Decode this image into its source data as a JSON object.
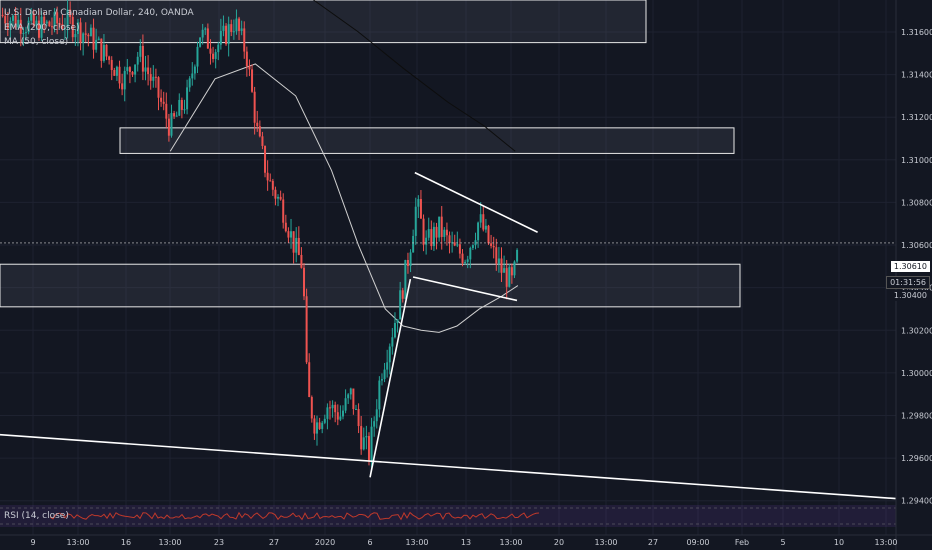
{
  "header": {
    "symbol": "U.S. Dollar / Canadian Dollar, 240, OANDA",
    "ema_label": "EMA (200, close)",
    "ma_label": "MA (50, close)",
    "rsi_label": "RSI (14, close)"
  },
  "price_axis": {
    "last_price": "1.30610",
    "countdown": "01:31:56",
    "extra_tick": "1.30400"
  },
  "chart_data": {
    "type": "candlestick",
    "title": "U.S. Dollar / Canadian Dollar, 240, OANDA",
    "ylim": [
      1.2938,
      1.3175
    ],
    "y_ticks": [
      1.316,
      1.314,
      1.312,
      1.31,
      1.308,
      1.306,
      1.304,
      1.302,
      1.3,
      1.298,
      1.296,
      1.294
    ],
    "y_tick_labels": [
      "1.31600",
      "1.31400",
      "1.31200",
      "1.31000",
      "1.30800",
      "1.30600",
      "1.30400",
      "1.30200",
      "1.30000",
      "1.29800",
      "1.29600",
      "1.29400"
    ],
    "x_labels": [
      "9",
      "13:00",
      "16",
      "13:00",
      "23",
      "27",
      "2020",
      "6",
      "13:00",
      "13",
      "13:00",
      "20",
      "13:00",
      "27",
      "09:00",
      "Feb",
      "5",
      "10",
      "13:00"
    ],
    "last_price": 1.3061,
    "colors": {
      "up": "#26a69a",
      "down": "#ef5350",
      "background": "#131722"
    },
    "zones": [
      {
        "from": 1.3155,
        "to": 1.3175
      },
      {
        "from": 1.3103,
        "to": 1.3115
      },
      {
        "from": 1.3031,
        "to": 1.3051
      }
    ],
    "trendlines": [
      {
        "from": [
          0,
          1.2971
        ],
        "to": [
          1,
          1.2941
        ]
      },
      {
        "from": [
          0.413,
          1.2951
        ],
        "to": [
          0.458,
          1.3044
        ]
      },
      {
        "from": [
          0.463,
          1.3094
        ],
        "to": [
          0.6,
          1.3066
        ]
      },
      {
        "from": [
          0.461,
          1.3045
        ],
        "to": [
          0.577,
          1.3034
        ]
      }
    ],
    "anchors": [
      [
        0.0,
        1.3168
      ],
      [
        0.04,
        1.3162
      ],
      [
        0.075,
        1.3165
      ],
      [
        0.1,
        1.3158
      ],
      [
        0.12,
        1.3148
      ],
      [
        0.138,
        1.3138
      ],
      [
        0.155,
        1.315
      ],
      [
        0.175,
        1.3132
      ],
      [
        0.19,
        1.3115
      ],
      [
        0.21,
        1.313
      ],
      [
        0.222,
        1.316
      ],
      [
        0.24,
        1.3152
      ],
      [
        0.262,
        1.3165
      ],
      [
        0.275,
        1.315
      ],
      [
        0.288,
        1.311
      ],
      [
        0.3,
        1.309
      ],
      [
        0.315,
        1.3078
      ],
      [
        0.328,
        1.306
      ],
      [
        0.338,
        1.305
      ],
      [
        0.343,
        1.299
      ],
      [
        0.352,
        1.2975
      ],
      [
        0.365,
        1.2985
      ],
      [
        0.38,
        1.298
      ],
      [
        0.392,
        1.299
      ],
      [
        0.403,
        1.297
      ],
      [
        0.412,
        1.2962
      ],
      [
        0.425,
        1.3
      ],
      [
        0.438,
        1.302
      ],
      [
        0.447,
        1.3035
      ],
      [
        0.456,
        1.3055
      ],
      [
        0.465,
        1.308
      ],
      [
        0.475,
        1.306
      ],
      [
        0.49,
        1.3068
      ],
      [
        0.505,
        1.3058
      ],
      [
        0.52,
        1.3055
      ],
      [
        0.535,
        1.3072
      ],
      [
        0.548,
        1.3058
      ],
      [
        0.56,
        1.3048
      ],
      [
        0.572,
        1.3042
      ],
      [
        0.58,
        1.3061
      ]
    ],
    "ma50": [
      [
        0.19,
        1.3104
      ],
      [
        0.24,
        1.3138
      ],
      [
        0.285,
        1.3145
      ],
      [
        0.33,
        1.313
      ],
      [
        0.37,
        1.3095
      ],
      [
        0.4,
        1.306
      ],
      [
        0.43,
        1.303
      ],
      [
        0.45,
        1.3022
      ],
      [
        0.47,
        1.302
      ],
      [
        0.49,
        1.3019
      ],
      [
        0.51,
        1.3022
      ],
      [
        0.535,
        1.303
      ],
      [
        0.56,
        1.3036
      ],
      [
        0.578,
        1.3041
      ]
    ],
    "ema200": [
      [
        0.35,
        1.3175
      ],
      [
        0.4,
        1.316
      ],
      [
        0.45,
        1.3143
      ],
      [
        0.5,
        1.3127
      ],
      [
        0.54,
        1.3116
      ],
      [
        0.575,
        1.3104
      ]
    ],
    "rsi": {
      "range": [
        0,
        100
      ],
      "levels": [
        30,
        70
      ]
    }
  }
}
